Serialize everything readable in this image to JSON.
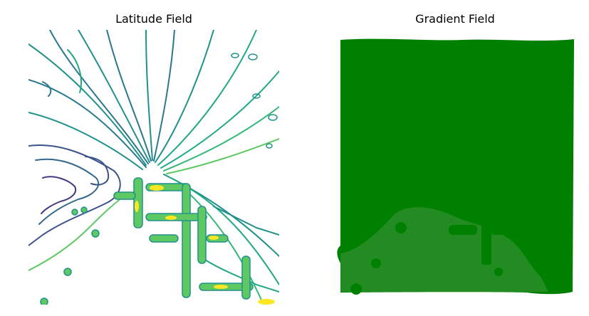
{
  "chart_data": [
    {
      "type": "contour",
      "title": "Latitude Field",
      "colormap": [
        "#440154",
        "#3b528b",
        "#21918c",
        "#5ec962",
        "#fde725"
      ],
      "axes": "off"
    },
    {
      "type": "quiver",
      "title": "Gradient Field",
      "colors": {
        "arrow_fill": "#008000",
        "lighter_region": "#228b22"
      },
      "axes": "off"
    }
  ]
}
